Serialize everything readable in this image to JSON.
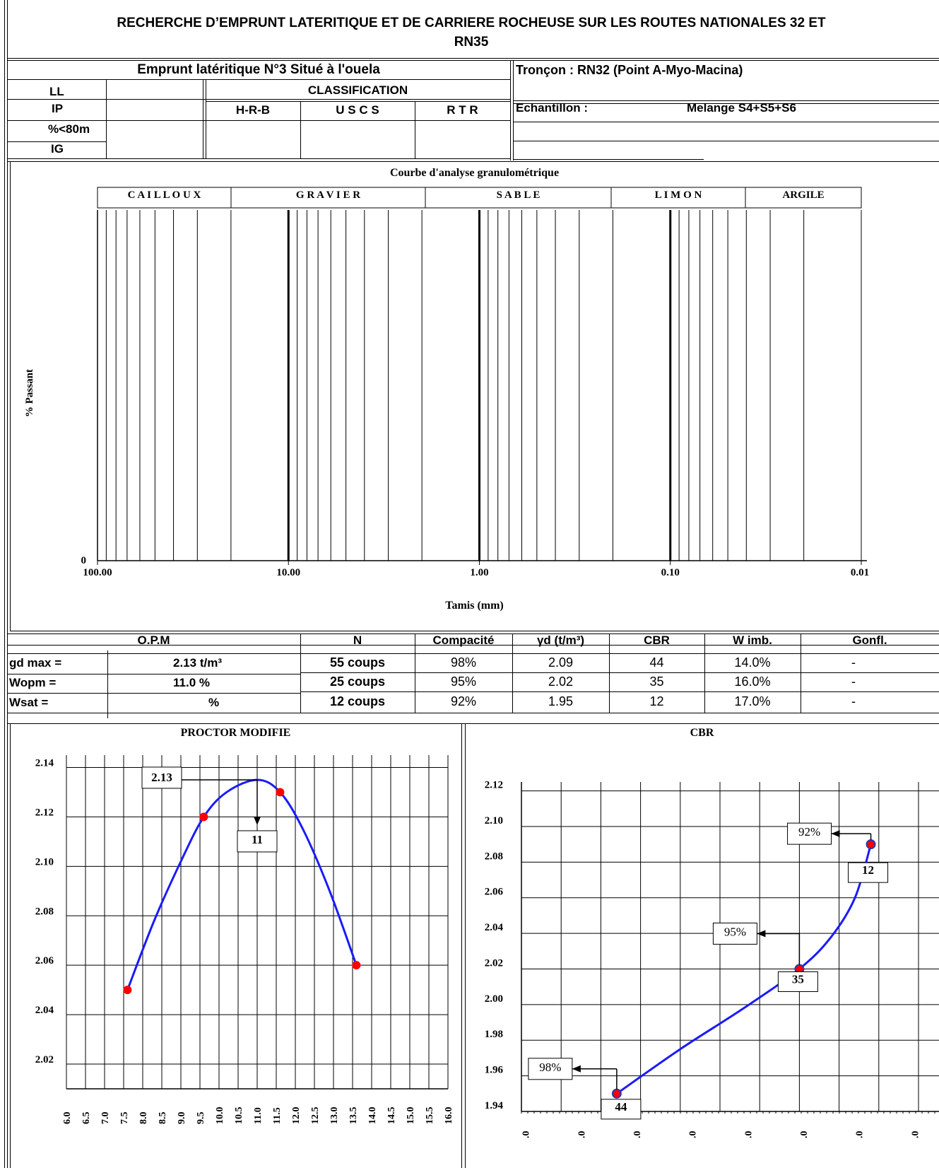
{
  "header": {
    "title_line1": "RECHERCHE D’EMPRUNT LATERITIQUE ET DE CARRIERE ROCHEUSE SUR LES ROUTES NATIONALES 32 ET",
    "title_line2": "RN35"
  },
  "info": {
    "emprunt": "Emprunt latéritique N°3 Situé à l'ouela",
    "troncon": "Tronçon : RN32 (Point A-Myo-Macina)",
    "echantillon_label": "Echantillon :",
    "echantillon_value": "Melange S4+S5+S6",
    "rows": [
      "LL",
      "IP",
      "%<80m",
      "IG"
    ],
    "classification_title": "CLASSIFICATION",
    "classification_cols": [
      "H-R-B",
      "U S C S",
      "R T R"
    ]
  },
  "granulo": {
    "title": "Courbe d'analyse granulométrique",
    "bands": [
      "C A I L L O U X",
      "G R A V I E R",
      "S A B L E",
      "L I M O N",
      "ARGILE"
    ],
    "ylabel": "% Passant",
    "y_zero": "0",
    "x_ticks": [
      "100.00",
      "10.00",
      "1.00",
      "0.10",
      "0.01"
    ],
    "xlabel": "Tamis (mm)"
  },
  "results": {
    "headers": [
      "O.P.M",
      "N",
      "Compacité",
      "γd (t/m³)",
      "CBR",
      "W imb.",
      "Gonfl."
    ],
    "opm": [
      {
        "label": "gd max =",
        "value": "2.13",
        "unit": "t/m³"
      },
      {
        "label": "Wopm =",
        "value": "11.0",
        "unit": "%"
      },
      {
        "label": "Wsat =",
        "value": "",
        "unit": "%"
      }
    ],
    "rows": [
      {
        "n": "55 coups",
        "compacite": "98%",
        "gd": "2.09",
        "cbr": "44",
        "wimb": "14.0%",
        "gonfl": "-"
      },
      {
        "n": "25 coups",
        "compacite": "95%",
        "gd": "2.02",
        "cbr": "35",
        "wimb": "16.0%",
        "gonfl": "-"
      },
      {
        "n": "12 coups",
        "compacite": "92%",
        "gd": "1.95",
        "cbr": "12",
        "wimb": "17.0%",
        "gonfl": "-"
      }
    ]
  },
  "chart_data": [
    {
      "type": "line",
      "title": "PROCTOR MODIFIE",
      "x_ticks": [
        "6.0",
        "6.5",
        "7.0",
        "7.5",
        "8.0",
        "8.5",
        "9.0",
        "9.5",
        "10.0",
        "10.5",
        "11.0",
        "11.5",
        "12.0",
        "12.5",
        "13.0",
        "13.5",
        "14.0",
        "14.5",
        "15.0",
        "15.5",
        "16.0"
      ],
      "y_ticks": [
        "2.14",
        "2.12",
        "2.10",
        "2.08",
        "2.06",
        "2.04",
        "2.02"
      ],
      "xlim": [
        6.0,
        16.0
      ],
      "ylim": [
        2.01,
        2.145
      ],
      "points": [
        {
          "x": 7.6,
          "y": 2.05
        },
        {
          "x": 9.6,
          "y": 2.12
        },
        {
          "x": 11.6,
          "y": 2.13
        },
        {
          "x": 13.6,
          "y": 2.06
        }
      ],
      "curve": [
        {
          "x": 7.6,
          "y": 2.05
        },
        {
          "x": 8.3,
          "y": 2.078
        },
        {
          "x": 9.0,
          "y": 2.102
        },
        {
          "x": 9.6,
          "y": 2.12
        },
        {
          "x": 10.2,
          "y": 2.13
        },
        {
          "x": 11.0,
          "y": 2.135
        },
        {
          "x": 11.6,
          "y": 2.13
        },
        {
          "x": 12.2,
          "y": 2.115
        },
        {
          "x": 12.9,
          "y": 2.09
        },
        {
          "x": 13.6,
          "y": 2.06
        }
      ],
      "annotations": {
        "ymax_label": "2.13",
        "wopt_label": "11",
        "x_peak": 11.0,
        "y_peak": 2.135
      }
    },
    {
      "type": "line",
      "title": "CBR",
      "y_ticks": [
        "2.12",
        "2.10",
        "2.08",
        "2.06",
        "2.04",
        "2.02",
        "2.00",
        "1.98",
        "1.96",
        "1.94"
      ],
      "ylim": [
        1.94,
        2.125
      ],
      "x_ticks": [
        ".0",
        ".0",
        ".0",
        ".0",
        ".0",
        ".0",
        ".0",
        ".0"
      ],
      "xlim": [
        0,
        50
      ],
      "points": [
        {
          "x": 12,
          "y": 1.95
        },
        {
          "x": 35,
          "y": 2.02
        },
        {
          "x": 44,
          "y": 2.09
        }
      ],
      "curve": [
        {
          "x": 12,
          "y": 1.95
        },
        {
          "x": 20,
          "y": 1.975
        },
        {
          "x": 28,
          "y": 1.998
        },
        {
          "x": 35,
          "y": 2.02
        },
        {
          "x": 39,
          "y": 2.038
        },
        {
          "x": 42,
          "y": 2.06
        },
        {
          "x": 44,
          "y": 2.09
        }
      ],
      "annotations": [
        {
          "pct": "98%",
          "cbr": "44"
        },
        {
          "pct": "95%",
          "cbr": "35"
        },
        {
          "pct": "92%",
          "cbr": "12"
        }
      ]
    }
  ]
}
